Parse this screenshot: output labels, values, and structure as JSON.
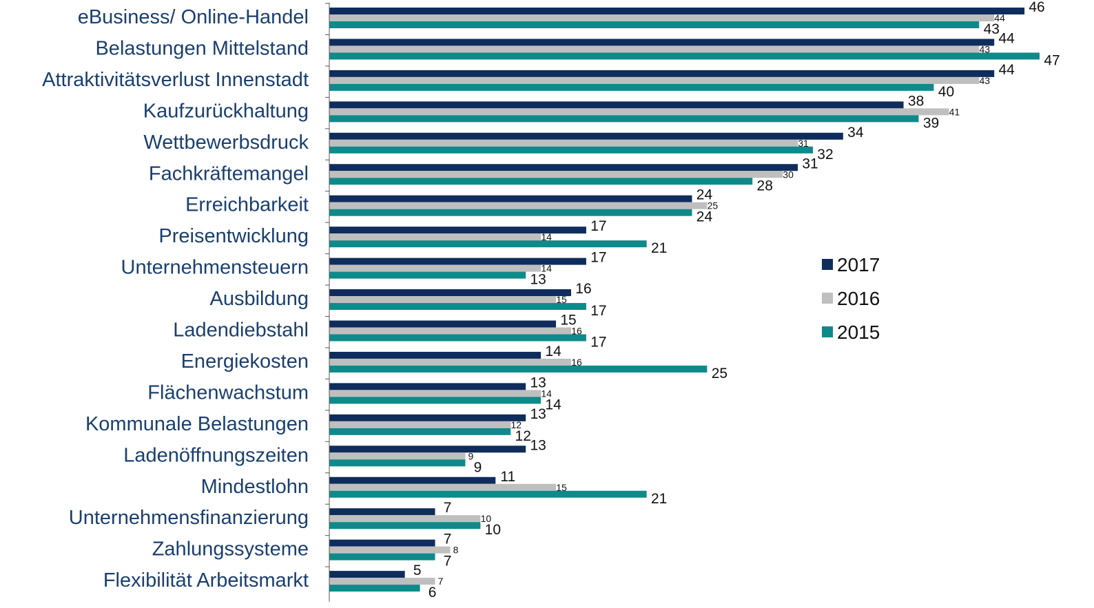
{
  "chart_data": {
    "type": "bar",
    "orientation": "horizontal",
    "categories": [
      "eBusiness/ Online-Handel",
      "Belastungen Mittelstand",
      "Attraktivitätsverlust Innenstadt",
      "Kaufzurückhaltung",
      "Wettbewerbsdruck",
      "Fachkräftemangel",
      "Erreichbarkeit",
      "Preisentwicklung",
      "Unternehmensteuern",
      "Ausbildung",
      "Ladendiebstahl",
      "Energiekosten",
      "Flächenwachstum",
      "Kommunale Belastungen",
      "Ladenöffnungszeiten",
      "Mindestlohn",
      "Unternehmensfinanzierung",
      "Zahlungssysteme",
      "Flexibilität Arbeitsmarkt"
    ],
    "series": [
      {
        "name": "2017",
        "color": "#0f2d5c",
        "values": [
          46,
          44,
          44,
          38,
          34,
          31,
          24,
          17,
          17,
          16,
          15,
          14,
          13,
          13,
          13,
          11,
          7,
          7,
          5
        ]
      },
      {
        "name": "2016",
        "color": "#bfbfbf",
        "values": [
          44,
          43,
          43,
          41,
          31,
          30,
          25,
          14,
          14,
          15,
          16,
          16,
          14,
          12,
          9,
          15,
          10,
          8,
          7
        ]
      },
      {
        "name": "2015",
        "color": "#0e8a8a",
        "values": [
          43,
          47,
          40,
          39,
          32,
          28,
          24,
          21,
          13,
          17,
          17,
          25,
          14,
          12,
          9,
          21,
          10,
          7,
          6
        ]
      }
    ],
    "legend": {
      "position": "right",
      "entries": [
        "2017",
        "2016",
        "2015"
      ]
    },
    "xlim": [
      0,
      47
    ],
    "grid": false,
    "title": "",
    "xlabel": "",
    "ylabel": ""
  }
}
